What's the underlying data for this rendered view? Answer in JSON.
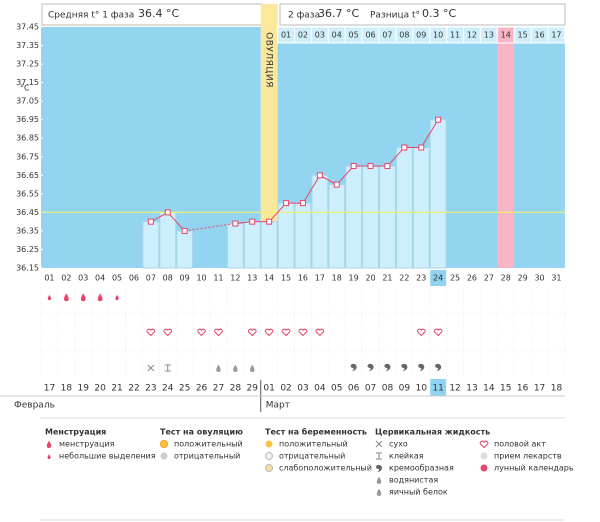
{
  "header": {
    "phase1_label": "Средняя t° 1 фаза",
    "phase1_value": "36.4 °C",
    "phase2_label": "2 фаза",
    "phase2_value": "36.7 °C",
    "diff_label": "Разница t°",
    "diff_value": "0.3 °C"
  },
  "chart_data": {
    "type": "line",
    "ylabel": "°C",
    "ovulation_label": "ОВУЛЯЦИЯ",
    "ovulation_day": "14",
    "color": "#e8456a",
    "x": [
      "01",
      "02",
      "03",
      "04",
      "05",
      "06",
      "07",
      "08",
      "09",
      "10",
      "11",
      "12",
      "13",
      "14",
      "15",
      "16",
      "17",
      "18",
      "19",
      "20",
      "21",
      "22",
      "23",
      "24",
      "25",
      "26",
      "27",
      "28",
      "29",
      "30",
      "31"
    ],
    "values": [
      null,
      null,
      null,
      null,
      null,
      null,
      36.4,
      36.45,
      36.35,
      null,
      null,
      36.39,
      36.4,
      36.4,
      36.5,
      36.5,
      36.65,
      36.6,
      36.7,
      36.7,
      36.7,
      36.8,
      36.8,
      36.95,
      null,
      null,
      null,
      null,
      null,
      null,
      null
    ],
    "coverline": 36.45,
    "ylim": [
      36.15,
      37.45
    ],
    "yticks": [
      36.15,
      36.25,
      36.35,
      36.45,
      36.55,
      36.65,
      36.75,
      36.85,
      36.95,
      37.05,
      37.15,
      37.25,
      37.35,
      37.45
    ]
  },
  "phase2_days": [
    "01",
    "02",
    "03",
    "04",
    "05",
    "06",
    "07",
    "08",
    "09",
    "10",
    "11",
    "12",
    "13",
    "14",
    "15",
    "16",
    "17"
  ],
  "dates": [
    "17",
    "18",
    "19",
    "20",
    "21",
    "22",
    "23",
    "24",
    "25",
    "26",
    "27",
    "28",
    "29",
    "01",
    "02",
    "03",
    "04",
    "05",
    "06",
    "07",
    "08",
    "09",
    "10",
    "11",
    "12",
    "13",
    "14",
    "15",
    "16",
    "17",
    "18"
  ],
  "months": [
    "Февраль",
    "Март"
  ],
  "legend": [
    {
      "title": "Менструация",
      "items": [
        "менструация",
        "небольшие выделения"
      ]
    },
    {
      "title": "Тест на овуляцию",
      "items": [
        "положительный",
        "отрицательный"
      ]
    },
    {
      "title": "Тест на беременность",
      "items": [
        "положительный",
        "отрицательный",
        "слабоположительный"
      ]
    },
    {
      "title": "Цервикальная жидкость",
      "items": [
        "сухо",
        "клейкая",
        "кремообразная",
        "водянистая",
        "яичный белок"
      ]
    },
    {
      "title": "",
      "items": [
        "половой акт",
        "прием лекарств",
        "лунный календарь"
      ]
    }
  ]
}
